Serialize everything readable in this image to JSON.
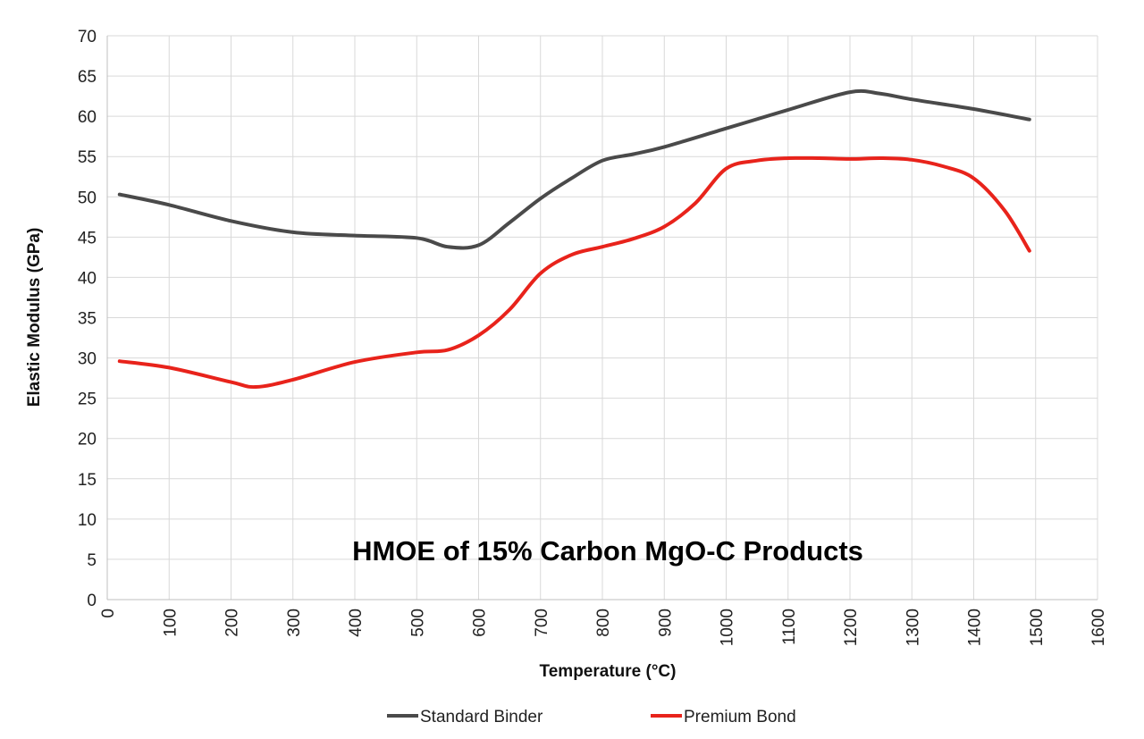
{
  "chart_data": {
    "type": "line",
    "title": "",
    "annotation": "HMOE of 15% Carbon MgO-C Products",
    "xlabel": "Temperature (°C)",
    "ylabel": "Elastic Modulus (GPa)",
    "xlim": [
      0,
      1600
    ],
    "ylim": [
      0,
      70
    ],
    "xticks": [
      "0",
      "100",
      "200",
      "300",
      "400",
      "500",
      "600",
      "700",
      "800",
      "900",
      "1000",
      "1100",
      "1200",
      "1300",
      "1400",
      "1500",
      "1600"
    ],
    "yticks": [
      "0",
      "5",
      "10",
      "15",
      "20",
      "25",
      "30",
      "35",
      "40",
      "45",
      "50",
      "55",
      "60",
      "65",
      "70"
    ],
    "grid": true,
    "legend_position": "bottom-center",
    "series": [
      {
        "name": "Standard Binder",
        "color": "#4a4a4a",
        "x": [
          20,
          100,
          200,
          300,
          400,
          500,
          550,
          600,
          650,
          700,
          750,
          800,
          850,
          900,
          1000,
          1100,
          1200,
          1250,
          1300,
          1400,
          1490
        ],
        "y": [
          50.3,
          49.0,
          47.0,
          45.6,
          45.2,
          44.9,
          43.8,
          44.0,
          46.8,
          49.8,
          52.3,
          54.5,
          55.3,
          56.2,
          58.5,
          60.8,
          63.0,
          62.8,
          62.1,
          60.9,
          59.6
        ]
      },
      {
        "name": "Premium Bond",
        "color": "#e8231b",
        "x": [
          20,
          100,
          200,
          240,
          300,
          400,
          500,
          550,
          600,
          650,
          700,
          750,
          800,
          850,
          900,
          950,
          1000,
          1050,
          1100,
          1150,
          1200,
          1250,
          1300,
          1350,
          1400,
          1450,
          1490
        ],
        "y": [
          29.6,
          28.8,
          27.0,
          26.4,
          27.3,
          29.5,
          30.7,
          31.0,
          32.8,
          36.0,
          40.5,
          42.8,
          43.8,
          44.8,
          46.3,
          49.2,
          53.5,
          54.5,
          54.8,
          54.8,
          54.7,
          54.8,
          54.6,
          53.8,
          52.3,
          48.3,
          43.3
        ]
      }
    ]
  }
}
